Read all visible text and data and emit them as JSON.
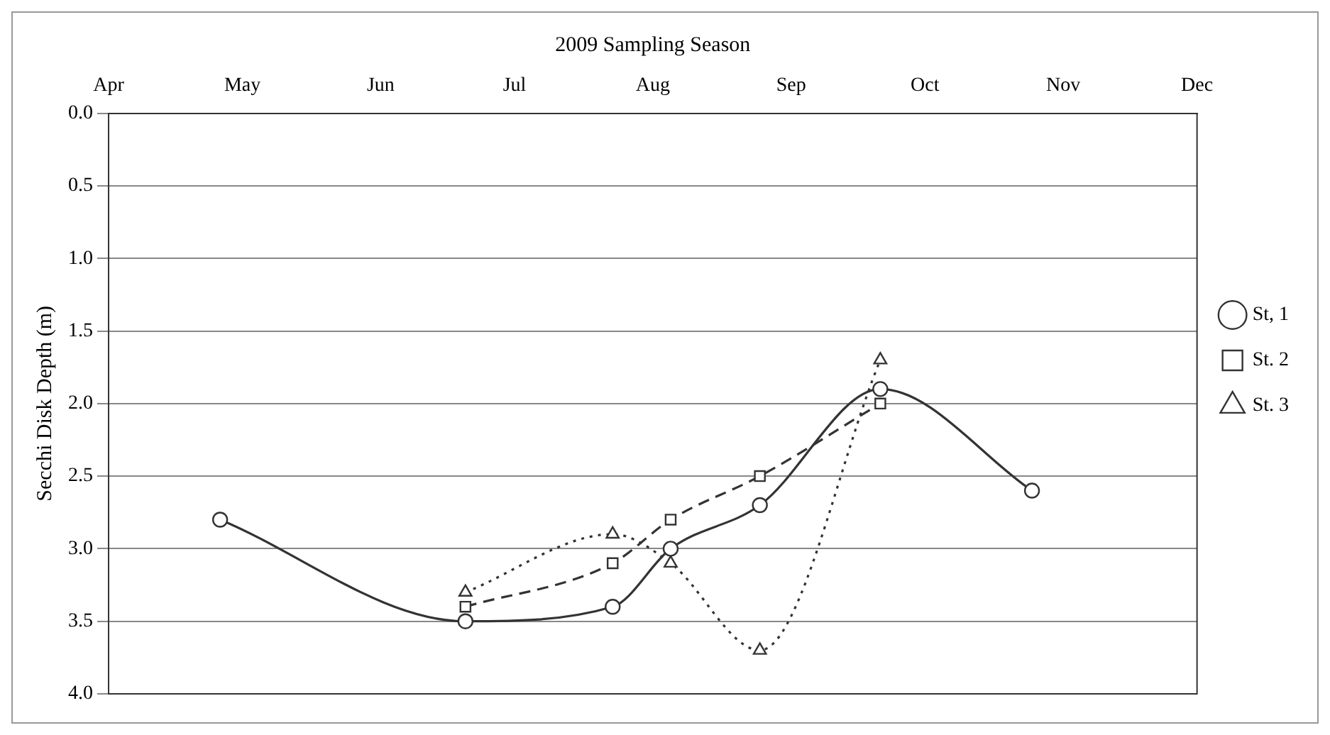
{
  "chart_data": {
    "type": "line",
    "xlabel": "2009 Sampling Season",
    "ylabel": "Secchi Disk Depth (m)",
    "xlim": [
      "2009-04-01",
      "2009-12-01"
    ],
    "xticks": [
      {
        "value": "2009-04-01",
        "label": "Apr"
      },
      {
        "value": "2009-05-01",
        "label": "May"
      },
      {
        "value": "2009-06-01",
        "label": "Jun"
      },
      {
        "value": "2009-07-01",
        "label": "Jul"
      },
      {
        "value": "2009-08-01",
        "label": "Aug"
      },
      {
        "value": "2009-09-01",
        "label": "Sep"
      },
      {
        "value": "2009-10-01",
        "label": "Oct"
      },
      {
        "value": "2009-11-01",
        "label": "Nov"
      },
      {
        "value": "2009-12-01",
        "label": "Dec"
      }
    ],
    "ylim": [
      4,
      0
    ],
    "yticks": [
      {
        "value": 0,
        "label": "0.0"
      },
      {
        "value": 0.5,
        "label": "0.5"
      },
      {
        "value": 1,
        "label": "1.0"
      },
      {
        "value": 1.5,
        "label": "1.5"
      },
      {
        "value": 2,
        "label": "2.0"
      },
      {
        "value": 2.5,
        "label": "2.5"
      },
      {
        "value": 3,
        "label": "3.0"
      },
      {
        "value": 3.5,
        "label": "3.5"
      },
      {
        "value": 4,
        "label": "4.0"
      }
    ],
    "grid": "y",
    "legend": "right",
    "series": [
      {
        "name": "St, 1",
        "color": "#333333",
        "marker": "circle",
        "line_style": "solid",
        "x": [
          "2009-04-26",
          "2009-06-20",
          "2009-07-23",
          "2009-08-05",
          "2009-08-25",
          "2009-09-21",
          "2009-10-25"
        ],
        "values": [
          2.8,
          3.5,
          3.4,
          3.0,
          2.7,
          1.9,
          2.6
        ]
      },
      {
        "name": "St. 2",
        "color": "#333333",
        "marker": "square",
        "line_style": "dashed",
        "x": [
          "2009-06-20",
          "2009-07-23",
          "2009-08-05",
          "2009-08-25",
          "2009-09-21"
        ],
        "values": [
          3.4,
          3.1,
          2.8,
          2.5,
          2.0
        ]
      },
      {
        "name": "St. 3",
        "color": "#333333",
        "marker": "triangle",
        "line_style": "dotted",
        "x": [
          "2009-06-20",
          "2009-07-23",
          "2009-08-05",
          "2009-08-25",
          "2009-09-21"
        ],
        "values": [
          3.3,
          2.9,
          3.1,
          3.7,
          1.7
        ]
      }
    ]
  }
}
